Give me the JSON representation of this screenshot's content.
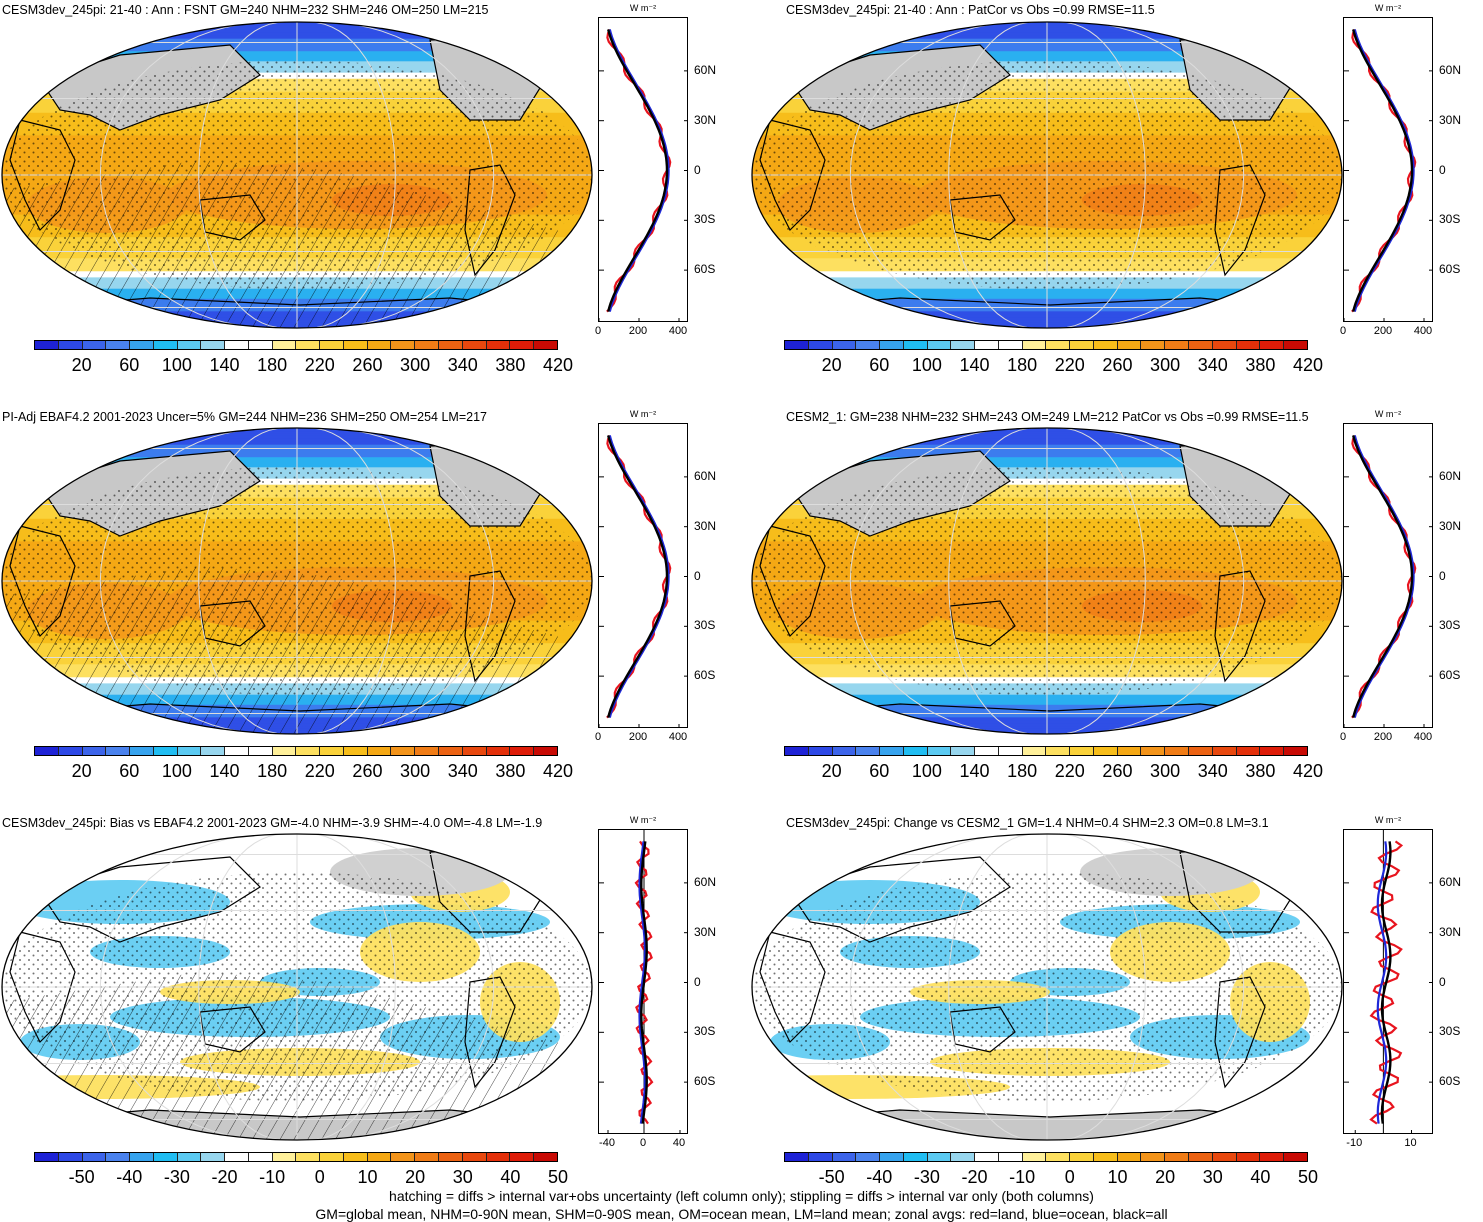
{
  "panels": [
    {
      "title": "CESM3dev_245pi: 21-40 : Ann : FSNT GM=240 NHM=232 SHM=246 OM=250 LM=215",
      "kind": "abs",
      "hatch": true
    },
    {
      "title": "CESM3dev_245pi: 21-40 : Ann : PatCor vs Obs =0.99 RMSE=11.5",
      "kind": "abs",
      "hatch": false
    },
    {
      "title": "PI-Adj EBAF4.2 2001-2023 Uncer=5% GM=244 NHM=236 SHM=250 OM=254 LM=217",
      "kind": "abs",
      "hatch": true
    },
    {
      "title": "CESM2_1: GM=238 NHM=232 SHM=243 OM=249 LM=212 PatCor vs Obs =0.99 RMSE=11.5",
      "kind": "abs",
      "hatch": false
    },
    {
      "title": "CESM3dev_245pi: Bias vs EBAF4.2 2001-2023 GM=-4.0 NHM=-3.9 SHM=-4.0 OM=-4.8 LM=-1.9",
      "kind": "diff",
      "hatch": true
    },
    {
      "title": "CESM3dev_245pi: Change vs CESM2_1 GM=1.4 NHM=0.4 SHM=2.3 OM=0.8 LM=3.1",
      "kind": "diff",
      "hatch": false
    }
  ],
  "colorbars": {
    "abs": {
      "labels": [
        "20",
        "60",
        "100",
        "140",
        "180",
        "220",
        "260",
        "300",
        "340",
        "380",
        "420"
      ],
      "colors": [
        "#1e22d6",
        "#2d48e6",
        "#3c64ea",
        "#4a82ee",
        "#36a3ee",
        "#20bdf2",
        "#5bcaf2",
        "#97d6ee",
        "#ffffff",
        "#ffffff",
        "#fff09a",
        "#fde060",
        "#fad23a",
        "#f7bd1a",
        "#f5a814",
        "#f3941a",
        "#f07c16",
        "#ec6212",
        "#e8480e",
        "#e4300a",
        "#de1c08",
        "#c80a04"
      ]
    },
    "diff": {
      "labels": [
        "-50",
        "-40",
        "-30",
        "-20",
        "-10",
        "0",
        "10",
        "20",
        "30",
        "40",
        "50"
      ],
      "colors": [
        "#1e22d6",
        "#2d48e6",
        "#3c64ea",
        "#4a82ee",
        "#36a3ee",
        "#20bdf2",
        "#5bcaf2",
        "#97d6ee",
        "#ffffff",
        "#ffffff",
        "#fff09a",
        "#fde060",
        "#fad23a",
        "#f7bd1a",
        "#f5a814",
        "#f3941a",
        "#f07c16",
        "#ec6212",
        "#e8480e",
        "#e4300a",
        "#de1c08",
        "#c80a04"
      ]
    }
  },
  "zonal": {
    "unit": "W m⁻²",
    "lat_ticks": [
      "60N",
      "30N",
      "0",
      "30S",
      "60S"
    ],
    "abs_x_ticks": [
      "0",
      "200",
      "400"
    ],
    "bias_x_ticks": [
      "-40",
      "0",
      "40"
    ],
    "change_x_ticks": [
      "-10",
      "10"
    ],
    "legend_colors": {
      "land": "#e8141e",
      "ocean": "#1e28d8",
      "all": "#000000"
    }
  },
  "footer": {
    "line1": "hatching = diffs > internal var+obs uncertainty (left column only); stippling = diffs > internal var only (both columns)",
    "line2": "GM=global mean, NHM=0-90N mean, SHM=0-90S mean, OM=ocean mean, LM=land mean; zonal avgs: red=land, blue=ocean, black=all"
  }
}
